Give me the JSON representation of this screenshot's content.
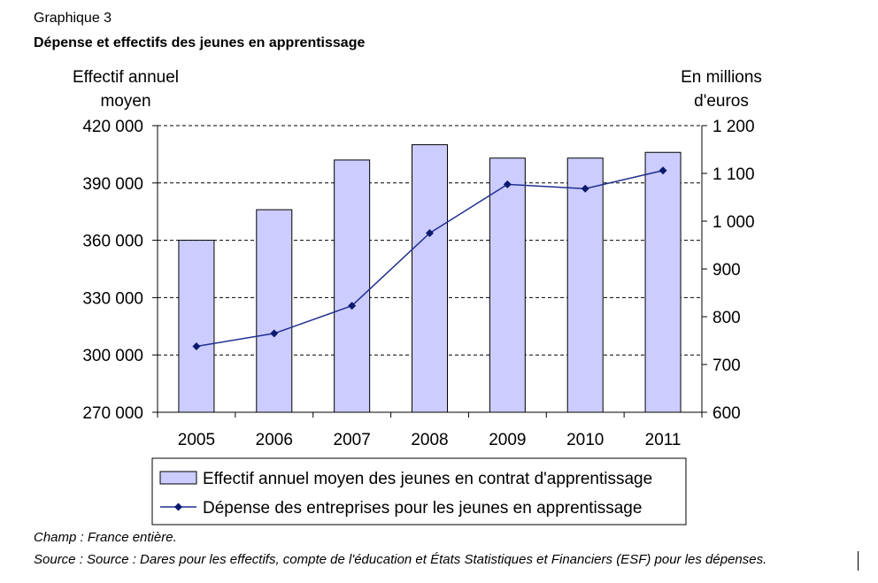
{
  "header": {
    "label": "Graphique 3",
    "title": "Dépense et effectifs des jeunes en apprentissage"
  },
  "axes": {
    "left_title_line1": "Effectif annuel",
    "left_title_line2": "moyen",
    "right_title_line1": "En millions",
    "right_title_line2": "d'euros"
  },
  "footer": {
    "scope": "Champ : France entière.",
    "source": "Source : Source : Dares pour les effectifs, compte de l'éducation et États Statistiques et Financiers (ESF) pour les dépenses."
  },
  "colors": {
    "bar_fill": "#ccccff",
    "bar_stroke": "#000000",
    "line": "#1f2f8f",
    "marker": "#0a1a6e",
    "grid": "#000000"
  },
  "chart_data": {
    "type": "bar",
    "categories": [
      "2005",
      "2006",
      "2007",
      "2008",
      "2009",
      "2010",
      "2011"
    ],
    "series": [
      {
        "name": "Effectif annuel moyen des jeunes en contrat d'apprentissage",
        "type": "bar",
        "axis": "left",
        "values": [
          360000,
          376000,
          402000,
          410000,
          403000,
          403000,
          406000
        ]
      },
      {
        "name": "Dépense des entreprises pour les jeunes en apprentissage",
        "type": "line",
        "axis": "right",
        "values": [
          738,
          765,
          823,
          975,
          1077,
          1068,
          1106
        ]
      }
    ],
    "left_axis": {
      "ylim": [
        270000,
        420000
      ],
      "ticks": [
        420000,
        390000,
        360000,
        330000,
        300000,
        270000
      ],
      "tick_labels": [
        "420 000",
        "390 000",
        "360 000",
        "330 000",
        "300 000",
        "270 000"
      ]
    },
    "right_axis": {
      "ylim": [
        600,
        1200
      ],
      "ticks": [
        1200,
        1100,
        1000,
        900,
        800,
        700,
        600
      ],
      "tick_labels": [
        "1 200",
        "1 100",
        "1 000",
        "900",
        "800",
        "700",
        "600"
      ]
    },
    "grid": "dashed horizontal",
    "legend_position": "bottom"
  }
}
